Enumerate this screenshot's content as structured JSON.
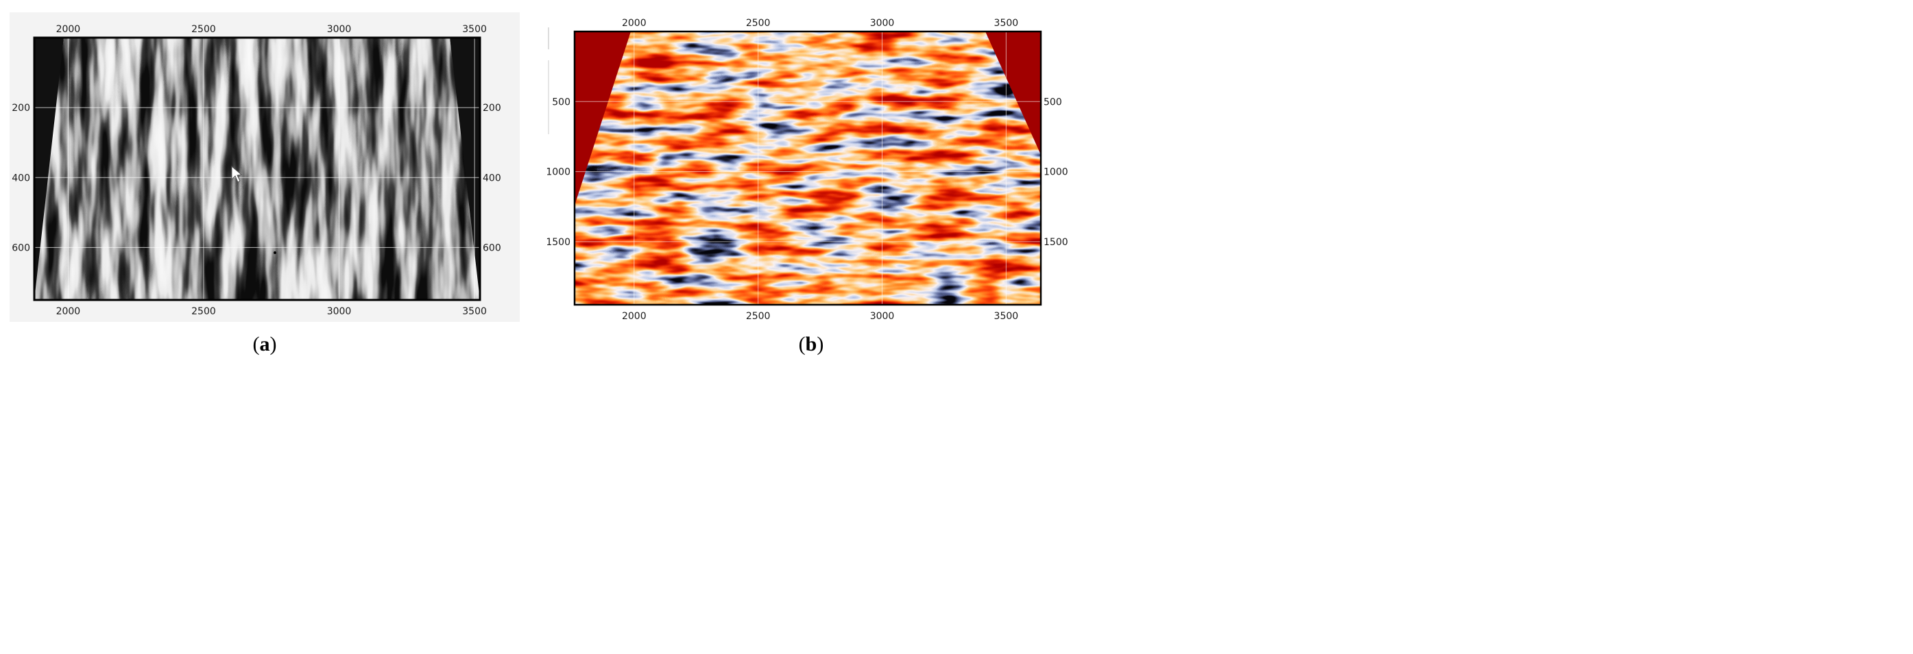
{
  "chart_data": [
    {
      "type": "heatmap",
      "panel_label": "a",
      "colormap": "grayscale",
      "background_color": "#f2f2f2",
      "frame_color": "#000000",
      "x_ticks": [
        "2000",
        "2500",
        "3000",
        "3500"
      ],
      "y_ticks": [
        "200",
        "400",
        "600"
      ],
      "xlim": [
        1875,
        3520
      ],
      "ylim": [
        0,
        750
      ],
      "y_inverted": true,
      "ticks_top": true,
      "ticks_bottom": true,
      "ticks_left": true,
      "ticks_right": true,
      "grid": true
    },
    {
      "type": "heatmap",
      "panel_label": "b",
      "colormap": "seismic-red-white-blue-black",
      "outside_fill_color": "#a10000",
      "frame_color": "#000000",
      "x_ticks": [
        "2000",
        "2500",
        "3000",
        "3500"
      ],
      "y_ticks": [
        "500",
        "1000",
        "1500"
      ],
      "xlim": [
        1760,
        3640
      ],
      "ylim": [
        0,
        1950
      ],
      "y_inverted": true,
      "ticks_top": true,
      "ticks_bottom": true,
      "ticks_left": true,
      "ticks_right": true,
      "grid": true
    }
  ]
}
